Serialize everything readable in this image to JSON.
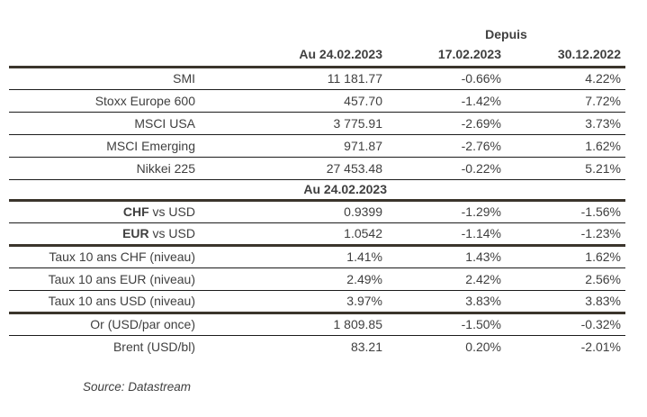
{
  "colors": {
    "background": "#ffffff",
    "text": "#3f3f3f",
    "thick_rule": "#3b352c",
    "thin_rule": "#1c1c1c"
  },
  "header": {
    "depuis": "Depuis",
    "col_au": "Au 24.02.2023",
    "col_since_week": "17.02.2023",
    "col_since_year": "30.12.2022"
  },
  "indices": {
    "rows": [
      {
        "label": "SMI",
        "au": "11 181.77",
        "d1": "-0.66%",
        "d2": "4.22%"
      },
      {
        "label": "Stoxx Europe 600",
        "au": "457.70",
        "d1": "-1.42%",
        "d2": "7.72%"
      },
      {
        "label": "MSCI USA",
        "au": "3 775.91",
        "d1": "-2.69%",
        "d2": "3.73%"
      },
      {
        "label": "MSCI Emerging",
        "au": "971.87",
        "d1": "-2.76%",
        "d2": "1.62%"
      },
      {
        "label": "Nikkei 225",
        "au": "27 453.48",
        "d1": "-0.22%",
        "d2": "5.21%"
      }
    ]
  },
  "section2": {
    "header": "Au 24.02.2023",
    "fx_rows": [
      {
        "label_bold": "CHF",
        "label_rest": " vs USD",
        "au": "0.9399",
        "d1": "-1.29%",
        "d2": "-1.56%"
      },
      {
        "label_bold": "EUR",
        "label_rest": " vs USD",
        "au": "1.0542",
        "d1": "-1.14%",
        "d2": "-1.23%"
      }
    ],
    "rate_rows": [
      {
        "label": "Taux 10 ans CHF (niveau)",
        "au": "1.41%",
        "d1": "1.43%",
        "d2": "1.62%"
      },
      {
        "label": "Taux 10 ans EUR (niveau)",
        "au": "2.49%",
        "d1": "2.42%",
        "d2": "2.56%"
      },
      {
        "label": "Taux 10 ans USD (niveau)",
        "au": "3.97%",
        "d1": "3.83%",
        "d2": "3.83%"
      }
    ],
    "commodity_rows": [
      {
        "label": "Or (USD/par once)",
        "au": "1 809.85",
        "d1": "-1.50%",
        "d2": "-0.32%"
      },
      {
        "label": "Brent (USD/bl)",
        "au": "83.21",
        "d1": "0.20%",
        "d2": "-2.01%"
      }
    ]
  },
  "source": "Source: Datastream"
}
